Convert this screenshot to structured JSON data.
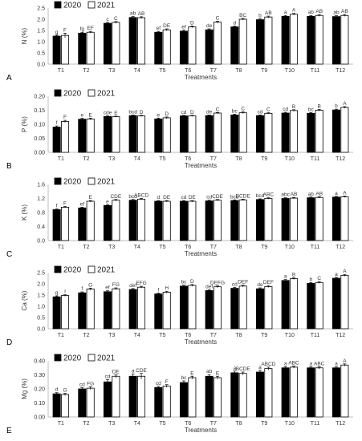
{
  "colors": {
    "y2020": "#000000",
    "y2021": "#ffffff",
    "axis": "#bfbfbf",
    "grid": "#d9d9d9",
    "edge": "#000000"
  },
  "chart_data": [
    {
      "type": "bar",
      "panel": "A",
      "title": "",
      "ylabel": "N (%)",
      "xlabel": "Treatments",
      "ylim": [
        0,
        2.5
      ],
      "yticks": [
        "0.0",
        "0.5",
        "1.0",
        "1.5",
        "2.0",
        "2.5"
      ],
      "grid": false,
      "legend_position": "top-left",
      "categories": [
        "T1",
        "T2",
        "T3",
        "T4",
        "T5",
        "T6",
        "T7",
        "T8",
        "T9",
        "T10",
        "T11",
        "T12"
      ],
      "series": [
        {
          "name": "2020",
          "values": [
            1.25,
            1.38,
            1.82,
            2.08,
            1.42,
            1.47,
            1.53,
            1.66,
            1.98,
            2.13,
            2.13,
            2.12
          ],
          "errors": [
            0.04,
            0.04,
            0.04,
            0.04,
            0.04,
            0.05,
            0.04,
            0.04,
            0.04,
            0.04,
            0.04,
            0.04
          ],
          "labels": [
            "g",
            "fg",
            "c",
            "ab",
            "ef",
            "ef",
            "de",
            "d",
            "b",
            "a",
            "ab",
            "ab"
          ]
        },
        {
          "name": "2021",
          "values": [
            1.28,
            1.42,
            1.86,
            2.07,
            1.53,
            1.66,
            1.87,
            2.0,
            2.1,
            2.22,
            2.17,
            2.17
          ],
          "errors": [
            0.1,
            0.04,
            0.04,
            0.04,
            0.04,
            0.04,
            0.04,
            0.04,
            0.04,
            0.04,
            0.04,
            0.04
          ],
          "labels": [
            "F",
            "EF",
            "C",
            "AB",
            "DE",
            "D",
            "C",
            "BC",
            "AB",
            "A",
            "AB",
            "AB"
          ]
        }
      ]
    },
    {
      "type": "bar",
      "panel": "B",
      "title": "",
      "ylabel": "P (%)",
      "xlabel": "Treatments",
      "ylim": [
        0,
        0.2
      ],
      "yticks": [
        "0.00",
        "0.05",
        "0.10",
        "0.15",
        "0.20"
      ],
      "grid": false,
      "legend_position": "top-left",
      "categories": [
        "T1",
        "T2",
        "T3",
        "T4",
        "T5",
        "T6",
        "T7",
        "T8",
        "T9",
        "T10",
        "T11",
        "T12"
      ],
      "series": [
        {
          "name": "2020",
          "values": [
            0.09,
            0.118,
            0.128,
            0.131,
            0.119,
            0.13,
            0.131,
            0.133,
            0.131,
            0.14,
            0.139,
            0.151
          ],
          "errors": [
            0.004,
            0.003,
            0.002,
            0.002,
            0.003,
            0.002,
            0.002,
            0.003,
            0.002,
            0.003,
            0.003,
            0.003
          ],
          "labels": [
            "f",
            "e",
            "cde",
            "bcd",
            "e",
            "cd",
            "de",
            "bc",
            "cd",
            "cd",
            "bc",
            "b"
          ]
        },
        {
          "name": "2021",
          "values": [
            0.11,
            0.119,
            0.127,
            0.13,
            0.123,
            0.13,
            0.14,
            0.141,
            0.139,
            0.149,
            0.15,
            0.16
          ],
          "errors": [
            0.004,
            0.003,
            0.002,
            0.002,
            0.003,
            0.002,
            0.002,
            0.003,
            0.002,
            0.003,
            0.003,
            0.003
          ],
          "labels": [
            "F",
            "E",
            "E",
            "D",
            "D",
            "D",
            "C",
            "C",
            "C",
            "B",
            "B",
            "A"
          ]
        }
      ]
    },
    {
      "type": "bar",
      "panel": "C",
      "title": "",
      "ylabel": "K (%)",
      "xlabel": "Treatments",
      "ylim": [
        0,
        1.6
      ],
      "yticks": [
        "0.0",
        "0.4",
        "0.8",
        "1.2",
        "1.6"
      ],
      "grid": false,
      "legend_position": "top-left",
      "categories": [
        "T1",
        "T2",
        "T3",
        "T4",
        "T5",
        "T6",
        "T7",
        "T8",
        "T9",
        "T10",
        "T11",
        "T12"
      ],
      "series": [
        {
          "name": "2020",
          "values": [
            0.88,
            0.93,
            1.0,
            1.15,
            1.12,
            1.12,
            1.13,
            1.14,
            1.17,
            1.2,
            1.22,
            1.24
          ],
          "errors": [
            0.02,
            0.02,
            0.02,
            0.02,
            0.02,
            0.02,
            0.02,
            0.02,
            0.02,
            0.02,
            0.02,
            0.02
          ],
          "labels": [
            "f",
            "ef",
            "e",
            "bcd",
            "d",
            "cd",
            "cd",
            "bcd",
            "bcd",
            "abc",
            "ab",
            "a"
          ]
        },
        {
          "name": "2021",
          "values": [
            0.95,
            1.12,
            1.15,
            1.18,
            1.12,
            1.12,
            1.15,
            1.16,
            1.2,
            1.21,
            1.23,
            1.25
          ],
          "errors": [
            0.02,
            0.02,
            0.02,
            0.02,
            0.02,
            0.02,
            0.02,
            0.02,
            0.02,
            0.02,
            0.02,
            0.02
          ],
          "labels": [
            "F",
            "E",
            "CDE",
            "ABCD",
            "DE",
            "DE",
            "CDE",
            "BCDE",
            "ABC",
            "AB",
            "AB",
            "A"
          ]
        }
      ]
    },
    {
      "type": "bar",
      "panel": "D",
      "title": "",
      "ylabel": "Ca (%)",
      "xlabel": "Treatments",
      "ylim": [
        0,
        2.5
      ],
      "yticks": [
        "0.0",
        "0.5",
        "1.0",
        "1.5",
        "2.0",
        "2.5"
      ],
      "grid": false,
      "legend_position": "top-left",
      "categories": [
        "T1",
        "T2",
        "T3",
        "T4",
        "T5",
        "T6",
        "T7",
        "T8",
        "T9",
        "T10",
        "T11",
        "T12"
      ],
      "series": [
        {
          "name": "2020",
          "values": [
            1.42,
            1.6,
            1.65,
            1.75,
            1.55,
            1.9,
            1.7,
            1.8,
            1.78,
            2.15,
            2.02,
            2.25
          ],
          "errors": [
            0.04,
            0.04,
            0.04,
            0.04,
            0.04,
            0.04,
            0.04,
            0.04,
            0.04,
            0.04,
            0.04,
            0.04
          ],
          "labels": [
            "g",
            "f",
            "ef",
            "def",
            "f",
            "bc",
            "def",
            "cd",
            "de",
            "a",
            "b",
            "a"
          ]
        },
        {
          "name": "2021",
          "values": [
            1.48,
            1.77,
            1.78,
            1.85,
            1.63,
            1.93,
            1.87,
            1.9,
            1.88,
            2.23,
            2.06,
            2.38
          ],
          "errors": [
            0.04,
            0.04,
            0.04,
            0.04,
            0.04,
            0.04,
            0.04,
            0.04,
            0.04,
            0.04,
            0.04,
            0.04
          ],
          "labels": [
            "I",
            "G",
            "FG",
            "EFG",
            "H",
            "D",
            "DEFG",
            "DEF",
            "DEF",
            "B",
            "C",
            "A"
          ]
        }
      ]
    },
    {
      "type": "bar",
      "panel": "E",
      "title": "",
      "ylabel": "Mg (%)",
      "xlabel": "Treatments",
      "ylim": [
        0,
        0.4
      ],
      "yticks": [
        "0.00",
        "0.10",
        "0.20",
        "0.30",
        "0.40"
      ],
      "grid": false,
      "legend_position": "top-left",
      "categories": [
        "T1",
        "T2",
        "T3",
        "T4",
        "T5",
        "T6",
        "T7",
        "T8",
        "T9",
        "T10",
        "T11",
        "T12"
      ],
      "series": [
        {
          "name": "2020",
          "values": [
            0.165,
            0.2,
            0.25,
            0.29,
            0.21,
            0.245,
            0.29,
            0.315,
            0.32,
            0.35,
            0.35,
            0.35
          ],
          "errors": [
            0.008,
            0.01,
            0.015,
            0.015,
            0.008,
            0.012,
            0.012,
            0.012,
            0.012,
            0.008,
            0.008,
            0.008
          ],
          "labels": [
            "d",
            "cd",
            "cd",
            "a",
            "cd",
            "bc",
            "ab",
            "a",
            "a",
            "a",
            "a",
            "a"
          ]
        },
        {
          "name": "2021",
          "values": [
            0.16,
            0.205,
            0.29,
            0.29,
            0.22,
            0.28,
            0.28,
            0.31,
            0.345,
            0.355,
            0.35,
            0.37
          ],
          "errors": [
            0.008,
            0.01,
            0.01,
            0.02,
            0.01,
            0.01,
            0.01,
            0.01,
            0.01,
            0.008,
            0.008,
            0.008
          ],
          "labels": [
            "G",
            "FG",
            "DE",
            "CDE",
            "F",
            "E",
            "E",
            "BCDE",
            "ABCD",
            "ABC",
            "ABC",
            "A"
          ]
        }
      ]
    }
  ]
}
